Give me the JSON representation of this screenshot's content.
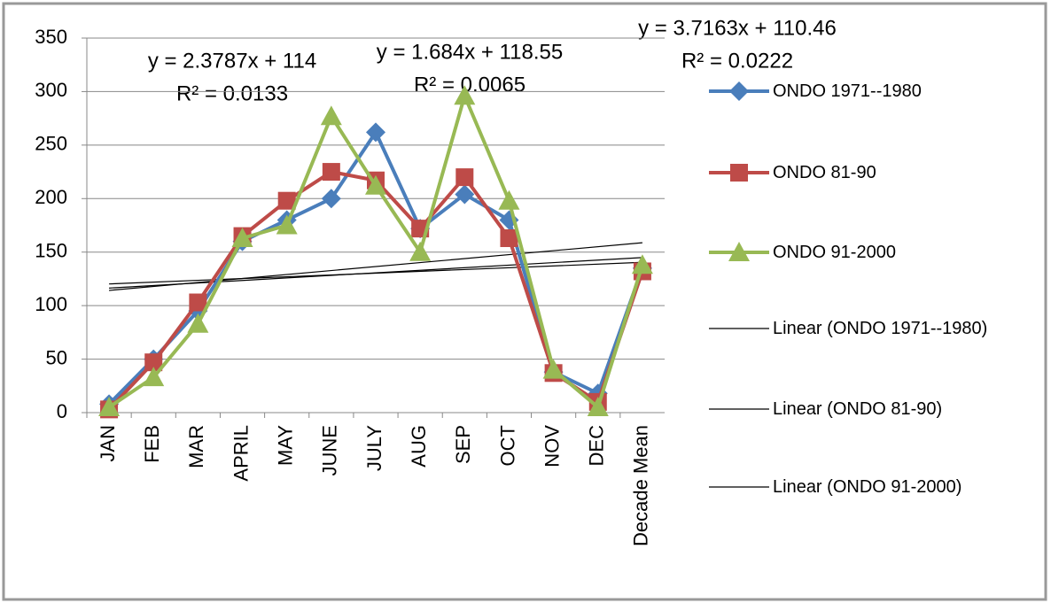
{
  "chart_data": {
    "type": "line",
    "categories": [
      "JAN",
      "FEB",
      "MAR",
      "APRIL",
      "MAY",
      "JUNE",
      "JULY",
      "AUG",
      "SEP",
      "OCT",
      "NOV",
      "DEC",
      "Decade Mean"
    ],
    "series": [
      {
        "name": "ONDO 1971--1980",
        "color": "#4a7ebb",
        "marker": "diamond",
        "values": [
          8,
          50,
          95,
          160,
          180,
          200,
          262,
          172,
          204,
          180,
          38,
          18,
          135
        ]
      },
      {
        "name": "ONDO 81-90",
        "color": "#be4b48",
        "marker": "square",
        "values": [
          3,
          47,
          103,
          165,
          198,
          225,
          217,
          172,
          220,
          163,
          37,
          10,
          132
        ]
      },
      {
        "name": "ONDO 91-2000",
        "color": "#98b954",
        "marker": "triangle",
        "values": [
          5,
          33,
          83,
          163,
          175,
          277,
          212,
          150,
          296,
          198,
          40,
          5,
          138
        ]
      }
    ],
    "trendlines": [
      {
        "name": "Linear (ONDO 1971--1980)",
        "equation": "y = 2.3787x + 114",
        "r2": "R² = 0.0133",
        "slope": 2.3787,
        "intercept": 114
      },
      {
        "name": "Linear (ONDO 81-90)",
        "equation": "y = 1.684x + 118.55",
        "r2": "R² = 0.0065",
        "slope": 1.684,
        "intercept": 118.55
      },
      {
        "name": "Linear (ONDO 91-2000)",
        "equation": "y = 3.7163x + 110.46",
        "r2": "R² = 0.0222",
        "slope": 3.7163,
        "intercept": 110.46
      }
    ],
    "ylim": [
      0,
      350
    ],
    "yticks": [
      0,
      50,
      100,
      150,
      200,
      250,
      300,
      350
    ],
    "grid": true
  }
}
